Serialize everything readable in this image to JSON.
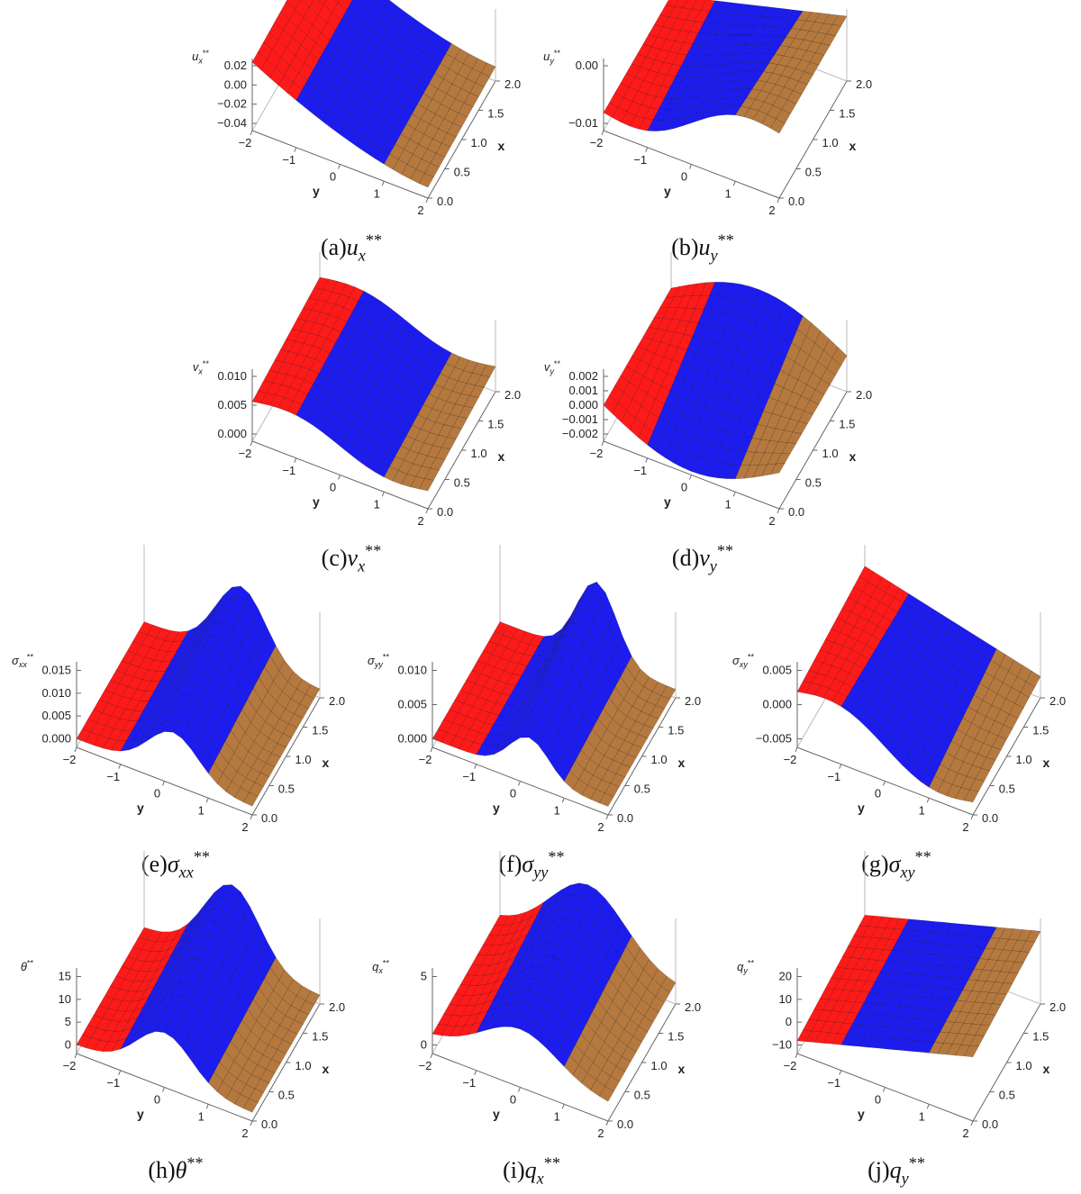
{
  "panels": [
    {
      "caption": {
        "tag": "(a)",
        "symbol": "u",
        "sub": "x",
        "sup": "**"
      },
      "z_label": {
        "symbol": "u",
        "sub": "x",
        "sup": "**"
      },
      "z_ticks": [
        "0.02",
        "0.00",
        "−0.02",
        "−0.04"
      ],
      "y_label": "y",
      "y_ticks": [
        "−2",
        "−1",
        "0",
        "1",
        "2"
      ],
      "x_label": "x",
      "x_ticks": [
        "0.0",
        "0.5",
        "1.0",
        "1.5",
        "2.0"
      ]
    },
    {
      "caption": {
        "tag": "(b)",
        "symbol": "u",
        "sub": "y",
        "sup": "**"
      },
      "z_label": {
        "symbol": "u",
        "sub": "y",
        "sup": "**"
      },
      "z_ticks": [
        "0.00",
        "−0.01"
      ],
      "y_label": "y",
      "y_ticks": [
        "−2",
        "−1",
        "0",
        "1",
        "2"
      ],
      "x_label": "x",
      "x_ticks": [
        "0.0",
        "0.5",
        "1.0",
        "1.5",
        "2.0"
      ]
    },
    {
      "caption": {
        "tag": "(c)",
        "symbol": "v",
        "sub": "x",
        "sup": "**"
      },
      "z_label": {
        "symbol": "v",
        "sub": "x",
        "sup": "**"
      },
      "z_ticks": [
        "0.010",
        "0.005",
        "0.000"
      ],
      "y_label": "y",
      "y_ticks": [
        "−2",
        "−1",
        "0",
        "1",
        "2"
      ],
      "x_label": "x",
      "x_ticks": [
        "0.0",
        "0.5",
        "1.0",
        "1.5",
        "2.0"
      ]
    },
    {
      "caption": {
        "tag": "(d)",
        "symbol": "v",
        "sub": "y",
        "sup": "**"
      },
      "z_label": {
        "symbol": "v",
        "sub": "y",
        "sup": "**"
      },
      "z_ticks": [
        "0.002",
        "0.001",
        "0.000",
        "−0.001",
        "−0.002"
      ],
      "y_label": "y",
      "y_ticks": [
        "−2",
        "−1",
        "0",
        "1",
        "2"
      ],
      "x_label": "x",
      "x_ticks": [
        "0.0",
        "0.5",
        "1.0",
        "1.5",
        "2.0"
      ]
    },
    {
      "caption": {
        "tag": "(e)",
        "symbol": "σ",
        "sub": "xx",
        "sup": "**"
      },
      "z_label": {
        "symbol": "σ",
        "sub": "xx",
        "sup": "**"
      },
      "z_ticks": [
        "0.015",
        "0.010",
        "0.005",
        "0.000"
      ],
      "y_label": "y",
      "y_ticks": [
        "−2",
        "−1",
        "0",
        "1",
        "2"
      ],
      "x_label": "x",
      "x_ticks": [
        "0.0",
        "0.5",
        "1.0",
        "1.5",
        "2.0"
      ]
    },
    {
      "caption": {
        "tag": "(f)",
        "symbol": "σ",
        "sub": "yy",
        "sup": "**"
      },
      "z_label": {
        "symbol": "σ",
        "sub": "yy",
        "sup": "**"
      },
      "z_ticks": [
        "0.010",
        "0.005",
        "0.000"
      ],
      "y_label": "y",
      "y_ticks": [
        "−2",
        "−1",
        "0",
        "1",
        "2"
      ],
      "x_label": "x",
      "x_ticks": [
        "0.0",
        "0.5",
        "1.0",
        "1.5",
        "2.0"
      ]
    },
    {
      "caption": {
        "tag": "(g)",
        "symbol": "σ",
        "sub": "xy",
        "sup": "**"
      },
      "z_label": {
        "symbol": "σ",
        "sub": "xy",
        "sup": "**"
      },
      "z_ticks": [
        "0.005",
        "0.000",
        "−0.005"
      ],
      "y_label": "y",
      "y_ticks": [
        "−2",
        "−1",
        "0",
        "1",
        "2"
      ],
      "x_label": "x",
      "x_ticks": [
        "0.0",
        "0.5",
        "1.0",
        "1.5",
        "2.0"
      ]
    },
    {
      "caption": {
        "tag": "(h)",
        "symbol": "θ",
        "sup": "**"
      },
      "z_label": {
        "symbol": "θ",
        "sup": "**"
      },
      "z_ticks": [
        "15",
        "10",
        "5",
        "0"
      ],
      "y_label": "y",
      "y_ticks": [
        "−2",
        "−1",
        "0",
        "1",
        "2"
      ],
      "x_label": "x",
      "x_ticks": [
        "0.0",
        "0.5",
        "1.0",
        "1.5",
        "2.0"
      ]
    },
    {
      "caption": {
        "tag": "(i)",
        "symbol": "q",
        "sub": "x",
        "sup": "**"
      },
      "z_label": {
        "symbol": "q",
        "sub": "x",
        "sup": "**"
      },
      "z_ticks": [
        "5",
        "0"
      ],
      "y_label": "y",
      "y_ticks": [
        "−2",
        "−1",
        "0",
        "1",
        "2"
      ],
      "x_label": "x",
      "x_ticks": [
        "0.0",
        "0.5",
        "1.0",
        "1.5",
        "2.0"
      ]
    },
    {
      "caption": {
        "tag": "(j)",
        "symbol": "q",
        "sub": "y",
        "sup": "**"
      },
      "z_label": {
        "symbol": "q",
        "sub": "y",
        "sup": "**"
      },
      "z_ticks": [
        "20",
        "10",
        "0",
        "−10"
      ],
      "y_label": "y",
      "y_ticks": [
        "−2",
        "−1",
        "0",
        "1",
        "2"
      ],
      "x_label": "x",
      "x_ticks": [
        "0.0",
        "0.5",
        "1.0",
        "1.5",
        "2.0"
      ]
    }
  ]
}
